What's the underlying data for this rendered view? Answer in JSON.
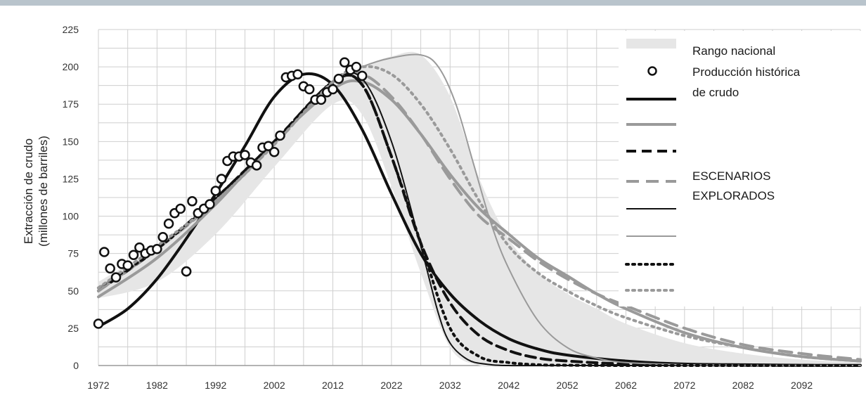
{
  "chart_data": {
    "type": "line",
    "title": "",
    "xlabel": "",
    "ylabel_line1": "Extracción de crudo",
    "ylabel_line2": "(millones de barriles)",
    "xlim": [
      1972,
      2102
    ],
    "ylim": [
      0,
      225
    ],
    "x_ticks": [
      1972,
      1982,
      1992,
      2002,
      2012,
      2022,
      2032,
      2042,
      2052,
      2062,
      2072,
      2082,
      2092
    ],
    "y_ticks": [
      0,
      25,
      50,
      75,
      100,
      125,
      150,
      175,
      200,
      225
    ],
    "grid": true,
    "legend_position": "top-right",
    "legend": {
      "range_label": "Rango nacional",
      "historical_label_line1": "Producción histórica",
      "historical_label_line2": "de crudo",
      "scenarios_label_line1": "ESCENARIOS",
      "scenarios_label_line2": "EXPLORADOS"
    },
    "range_band": {
      "x": [
        1972,
        1982,
        1992,
        2002,
        2012,
        2017,
        2022,
        2027,
        2032,
        2037,
        2042,
        2047,
        2052,
        2057,
        2062,
        2072,
        2082,
        2092,
        2102
      ],
      "upper": [
        56,
        80,
        110,
        150,
        190,
        200,
        207,
        208,
        180,
        125,
        85,
        62,
        48,
        38,
        28,
        15,
        8,
        4,
        2
      ],
      "lower": [
        45,
        56,
        88,
        133,
        175,
        168,
        120,
        62,
        12,
        0,
        0,
        0,
        0,
        0,
        0,
        0,
        0,
        0,
        0
      ]
    },
    "historical": {
      "x": [
        1972,
        1973,
        1974,
        1975,
        1976,
        1977,
        1978,
        1979,
        1980,
        1981,
        1982,
        1983,
        1984,
        1985,
        1986,
        1987,
        1988,
        1989,
        1990,
        1991,
        1992,
        1993,
        1994,
        1995,
        1996,
        1997,
        1998,
        1999,
        2000,
        2001,
        2002,
        2003,
        2004,
        2005,
        2006,
        2007,
        2008,
        2009,
        2010,
        2011,
        2012,
        2013,
        2014,
        2015,
        2016,
        2017,
        1987
      ],
      "y": [
        28,
        76,
        65,
        59,
        68,
        67,
        74,
        79,
        75,
        77,
        78,
        86,
        95,
        102,
        105,
        63,
        110,
        102,
        105,
        108,
        117,
        125,
        137,
        140,
        140,
        141,
        136,
        134,
        146,
        147,
        143,
        154,
        193,
        194,
        195,
        187,
        185,
        178,
        178,
        183,
        185,
        192,
        203,
        198,
        200,
        194,
        63
      ]
    },
    "series": [
      {
        "style": "black-thick-solid",
        "x": [
          1972,
          1977,
          1982,
          1987,
          1992,
          1997,
          2002,
          2007,
          2012,
          2017,
          2022,
          2027,
          2032,
          2037,
          2042,
          2047,
          2052,
          2062,
          2072,
          2082,
          2092,
          2102
        ],
        "y": [
          26,
          38,
          58,
          85,
          115,
          147,
          180,
          195,
          188,
          158,
          115,
          75,
          48,
          30,
          18,
          11,
          7,
          3,
          1,
          0.5,
          0.2,
          0.1
        ]
      },
      {
        "style": "gray-thick-solid",
        "x": [
          1972,
          1982,
          1992,
          2002,
          2012,
          2017,
          2022,
          2027,
          2032,
          2037,
          2042,
          2047,
          2052,
          2057,
          2062,
          2072,
          2082,
          2092,
          2102
        ],
        "y": [
          46,
          72,
          108,
          150,
          185,
          190,
          178,
          155,
          128,
          105,
          88,
          72,
          60,
          48,
          38,
          22,
          12,
          6,
          3
        ]
      },
      {
        "style": "black-dashed",
        "x": [
          1972,
          1982,
          1992,
          2002,
          2012,
          2017,
          2022,
          2027,
          2032,
          2037,
          2042,
          2047,
          2052,
          2062,
          2072,
          2082,
          2092,
          2102
        ],
        "y": [
          50,
          78,
          112,
          150,
          190,
          188,
          140,
          82,
          42,
          20,
          10,
          5,
          3,
          1,
          0.5,
          0.2,
          0.1,
          0
        ]
      },
      {
        "style": "gray-dashed",
        "x": [
          1972,
          1982,
          1992,
          2002,
          2012,
          2017,
          2022,
          2027,
          2032,
          2037,
          2042,
          2047,
          2052,
          2057,
          2062,
          2072,
          2082,
          2092,
          2102
        ],
        "y": [
          50,
          78,
          110,
          148,
          190,
          195,
          180,
          155,
          125,
          100,
          85,
          70,
          58,
          48,
          40,
          25,
          14,
          8,
          4
        ]
      },
      {
        "style": "black-thin-solid",
        "x": [
          1972,
          1982,
          1992,
          2002,
          2012,
          2017,
          2022,
          2027,
          2030,
          2032,
          2035,
          2038,
          2042,
          2052,
          2062,
          2072,
          2082,
          2092,
          2102
        ],
        "y": [
          52,
          78,
          112,
          150,
          190,
          192,
          150,
          80,
          35,
          15,
          4,
          1,
          0,
          0,
          0,
          0,
          0,
          0,
          0
        ]
      },
      {
        "style": "gray-thin-solid",
        "x": [
          1972,
          1982,
          1992,
          2002,
          2012,
          2017,
          2022,
          2027,
          2030,
          2033,
          2036,
          2039,
          2042,
          2047,
          2052,
          2057,
          2062,
          2072,
          2082,
          2092,
          2102
        ],
        "y": [
          52,
          78,
          110,
          148,
          190,
          200,
          206,
          208,
          200,
          175,
          135,
          95,
          65,
          30,
          12,
          5,
          2,
          0.5,
          0.2,
          0.1,
          0
        ]
      },
      {
        "style": "black-dotted",
        "x": [
          1972,
          1982,
          1992,
          2002,
          2012,
          2017,
          2022,
          2027,
          2032,
          2037,
          2042,
          2047,
          2052,
          2062,
          2072,
          2082,
          2092,
          2102
        ],
        "y": [
          52,
          78,
          112,
          150,
          190,
          188,
          140,
          82,
          25,
          6,
          2,
          0.5,
          0.2,
          0,
          0,
          0,
          0,
          0
        ]
      },
      {
        "style": "gray-dotted",
        "x": [
          1972,
          1982,
          1992,
          2002,
          2012,
          2017,
          2022,
          2027,
          2032,
          2037,
          2042,
          2047,
          2052,
          2057,
          2062,
          2072,
          2082,
          2092,
          2102
        ],
        "y": [
          52,
          80,
          110,
          148,
          190,
          200,
          195,
          175,
          145,
          110,
          80,
          62,
          50,
          40,
          32,
          20,
          12,
          6,
          3
        ]
      }
    ]
  }
}
